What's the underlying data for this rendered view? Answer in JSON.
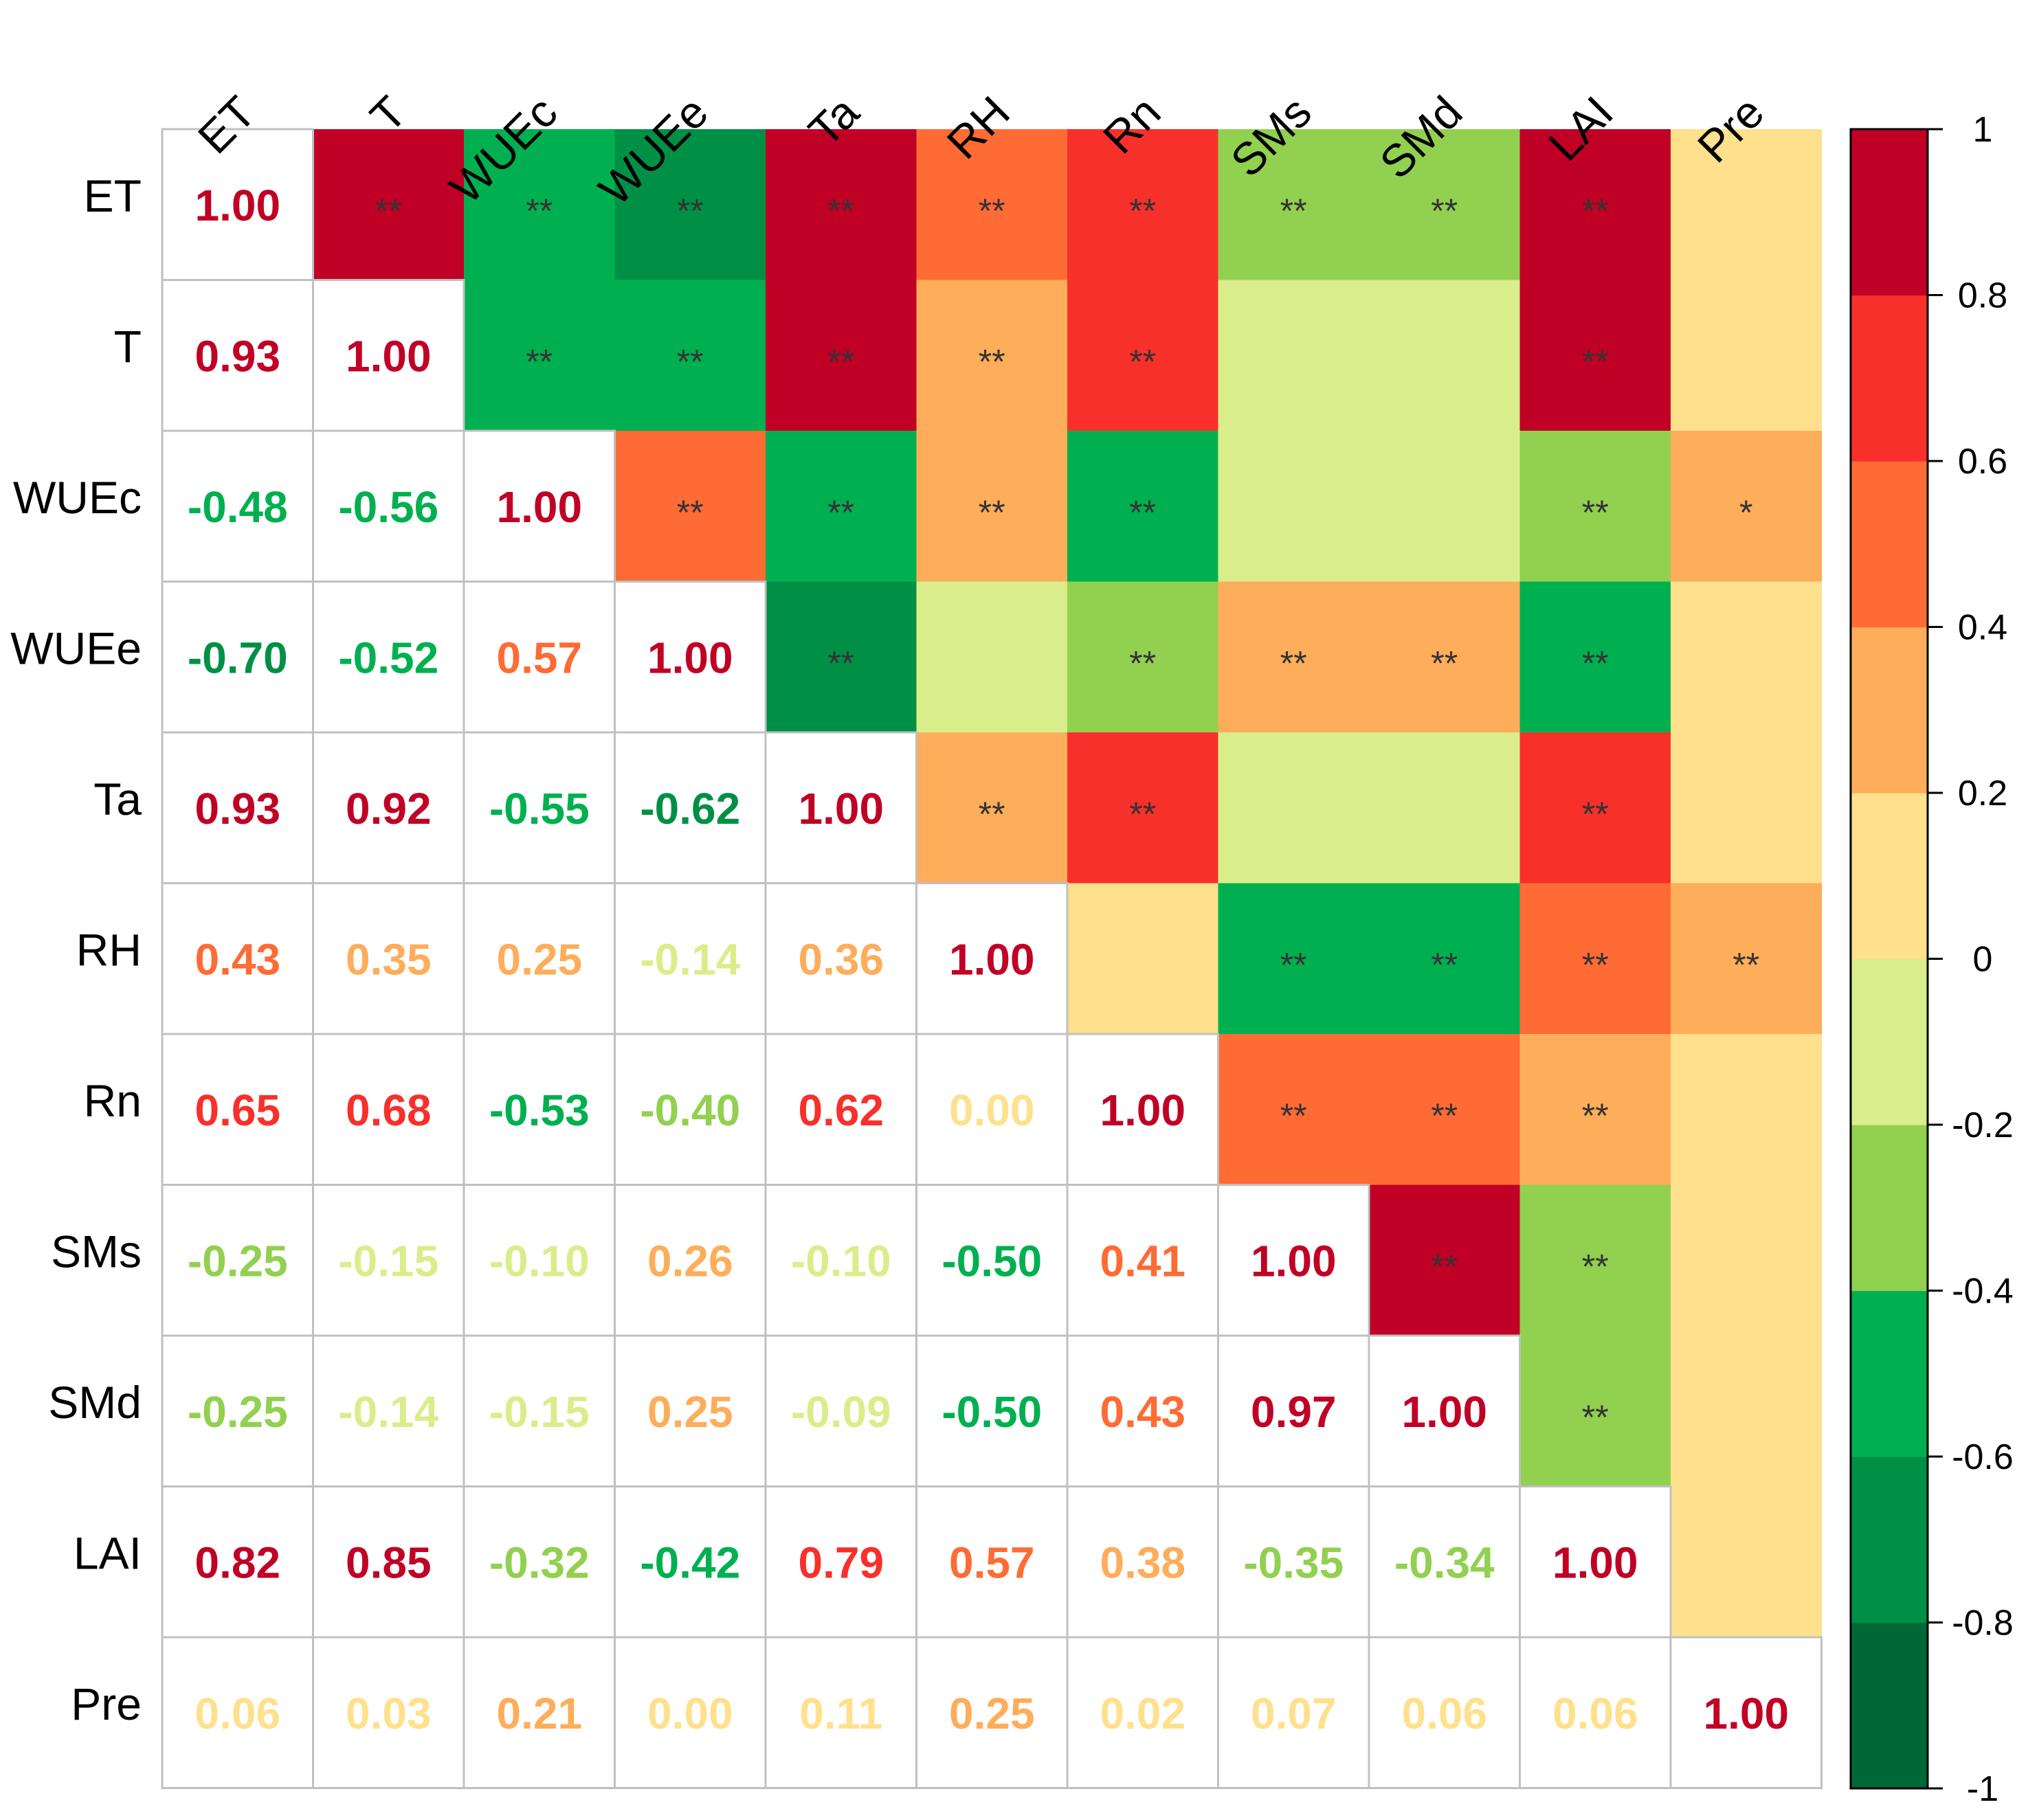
{
  "chart_data": {
    "type": "heatmap",
    "variables": [
      "ET",
      "T",
      "WUEc",
      "WUEe",
      "Ta",
      "RH",
      "Rn",
      "SMs",
      "SMd",
      "LAI",
      "Pre"
    ],
    "lower_labels": [
      [
        "1.00"
      ],
      [
        "0.93",
        "1.00"
      ],
      [
        "-0.48",
        "-0.56",
        "1.00"
      ],
      [
        "-0.70",
        "-0.52",
        "0.57",
        "1.00"
      ],
      [
        "0.93",
        "0.92",
        "-0.55",
        "-0.62",
        "1.00"
      ],
      [
        "0.43",
        "0.35",
        "0.25",
        "-0.14",
        "0.36",
        "1.00"
      ],
      [
        "0.65",
        "0.68",
        "-0.53",
        "-0.40",
        "0.62",
        "0.00",
        "1.00"
      ],
      [
        "-0.25",
        "-0.15",
        "-0.10",
        "0.26",
        "-0.10",
        "-0.50",
        "0.41",
        "1.00"
      ],
      [
        "-0.25",
        "-0.14",
        "-0.15",
        "0.25",
        "-0.09",
        "-0.50",
        "0.43",
        "0.97",
        "1.00"
      ],
      [
        "0.82",
        "0.85",
        "-0.32",
        "-0.42",
        "0.79",
        "0.57",
        "0.38",
        "-0.35",
        "-0.34",
        "1.00"
      ],
      [
        "0.06",
        "0.03",
        "0.21",
        "0.00",
        "0.11",
        "0.25",
        "0.02",
        "0.07",
        "0.06",
        "0.06",
        "1.00"
      ]
    ],
    "significance": [
      [
        "",
        "**",
        "**",
        "**",
        "**",
        "**",
        "**",
        "**",
        "**",
        "**",
        ""
      ],
      [
        "",
        "",
        "**",
        "**",
        "**",
        "**",
        "**",
        "",
        "",
        "**",
        ""
      ],
      [
        "",
        "",
        "",
        "**",
        "**",
        "**",
        "**",
        "",
        "",
        "**",
        "*"
      ],
      [
        "",
        "",
        "",
        "",
        "**",
        "",
        "**",
        "**",
        "**",
        "**",
        ""
      ],
      [
        "",
        "",
        "",
        "",
        "",
        "**",
        "**",
        "",
        "",
        "**",
        ""
      ],
      [
        "",
        "",
        "",
        "",
        "",
        "",
        "",
        "**",
        "**",
        "**",
        "**"
      ],
      [
        "",
        "",
        "",
        "",
        "",
        "",
        "",
        "**",
        "**",
        "**",
        ""
      ],
      [
        "",
        "",
        "",
        "",
        "",
        "",
        "",
        "",
        "**",
        "**",
        ""
      ],
      [
        "",
        "",
        "",
        "",
        "",
        "",
        "",
        "",
        "",
        "**",
        ""
      ],
      [
        "",
        "",
        "",
        "",
        "",
        "",
        "",
        "",
        "",
        "",
        ""
      ],
      [
        "",
        "",
        "",
        "",
        "",
        "",
        "",
        "",
        "",
        "",
        ""
      ]
    ],
    "color_scale": {
      "min": -1,
      "max": 1,
      "ticks": [
        "1",
        "0.8",
        "0.6",
        "0.4",
        "0.2",
        "0",
        "-0.2",
        "-0.4",
        "-0.6",
        "-0.8",
        "-1"
      ],
      "bins": [
        "#006837",
        "#009045",
        "#00B050",
        "#92D050",
        "#D9EE8A",
        "#FFE08C",
        "#FEAD5A",
        "#FF6B35",
        "#F8302B",
        "#C00025"
      ]
    },
    "grid_color": "#C0C0C0",
    "legend_position": "right",
    "title": "",
    "xlabel": "",
    "ylabel": ""
  }
}
